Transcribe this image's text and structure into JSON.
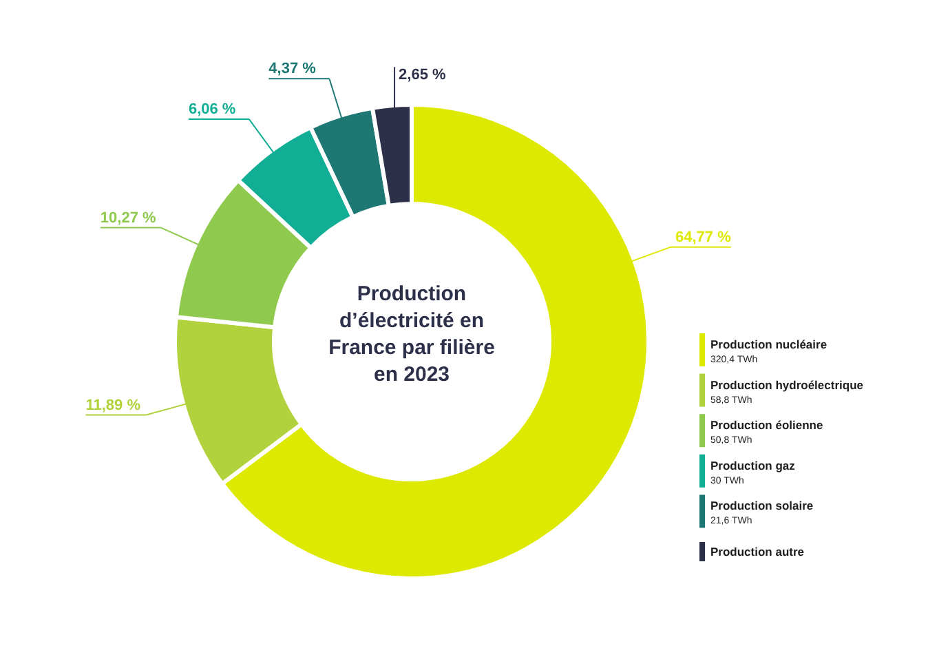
{
  "chart_data": {
    "type": "donut",
    "title": "Production d’électricité en France par filière en 2023",
    "categories": [
      "Production nucléaire\n320,4 TWh",
      "Production hydroélectrique\n58,8 TWh",
      "Production éolienne\n50,8 TWh",
      "Production gaz\n30 TWh",
      "Production solaire\n21,6 TWh",
      "Production autre"
    ],
    "values": [
      64.77,
      11.89,
      10.27,
      6.06,
      4.37,
      2.65
    ],
    "value_labels": [
      "64,77 %",
      "11,89 %",
      "10,27 %",
      "6,06 %",
      "4,37 %",
      "2,65 %"
    ],
    "colors": [
      "#dde900",
      "#b1d23c",
      "#8fca4e",
      "#11ae95",
      "#1d7874",
      "#2c3049"
    ],
    "legend": "right"
  }
}
